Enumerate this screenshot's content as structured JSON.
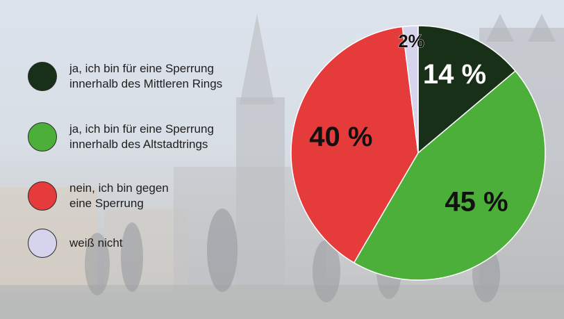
{
  "colors": {
    "dark_green": "#183018",
    "green": "#4caf3a",
    "red": "#e63b3b",
    "lavender": "#d6d3ec"
  },
  "legend": [
    {
      "label": "ja, ich bin für eine Sperrung\ninnerhalb des Mittleren Rings",
      "color": "#183018"
    },
    {
      "label": "ja, ich bin für eine Sperrung\ninnerhalb des Altstadtrings",
      "color": "#4caf3a"
    },
    {
      "label": "nein, ich bin gegen\neine Sperrung",
      "color": "#e63b3b"
    },
    {
      "label": "weiß nicht",
      "color": "#d6d3ec"
    }
  ],
  "chart_data": {
    "type": "pie",
    "title": "",
    "slices": [
      {
        "label": "ja, ich bin für eine Sperrung innerhalb des Mittleren Rings",
        "value": 14,
        "display": "14 %",
        "color": "#183018",
        "label_color": "#ffffff"
      },
      {
        "label": "ja, ich bin für eine Sperrung innerhalb des Altstadtrings",
        "value": 45,
        "display": "45 %",
        "color": "#4caf3a",
        "label_color": "#111111"
      },
      {
        "label": "nein, ich bin gegen eine Sperrung",
        "value": 40,
        "display": "40 %",
        "color": "#e63b3b",
        "label_color": "#111111"
      },
      {
        "label": "weiß nicht",
        "value": 2,
        "display": "2%",
        "color": "#d6d3ec",
        "label_color": "#111111"
      }
    ]
  }
}
